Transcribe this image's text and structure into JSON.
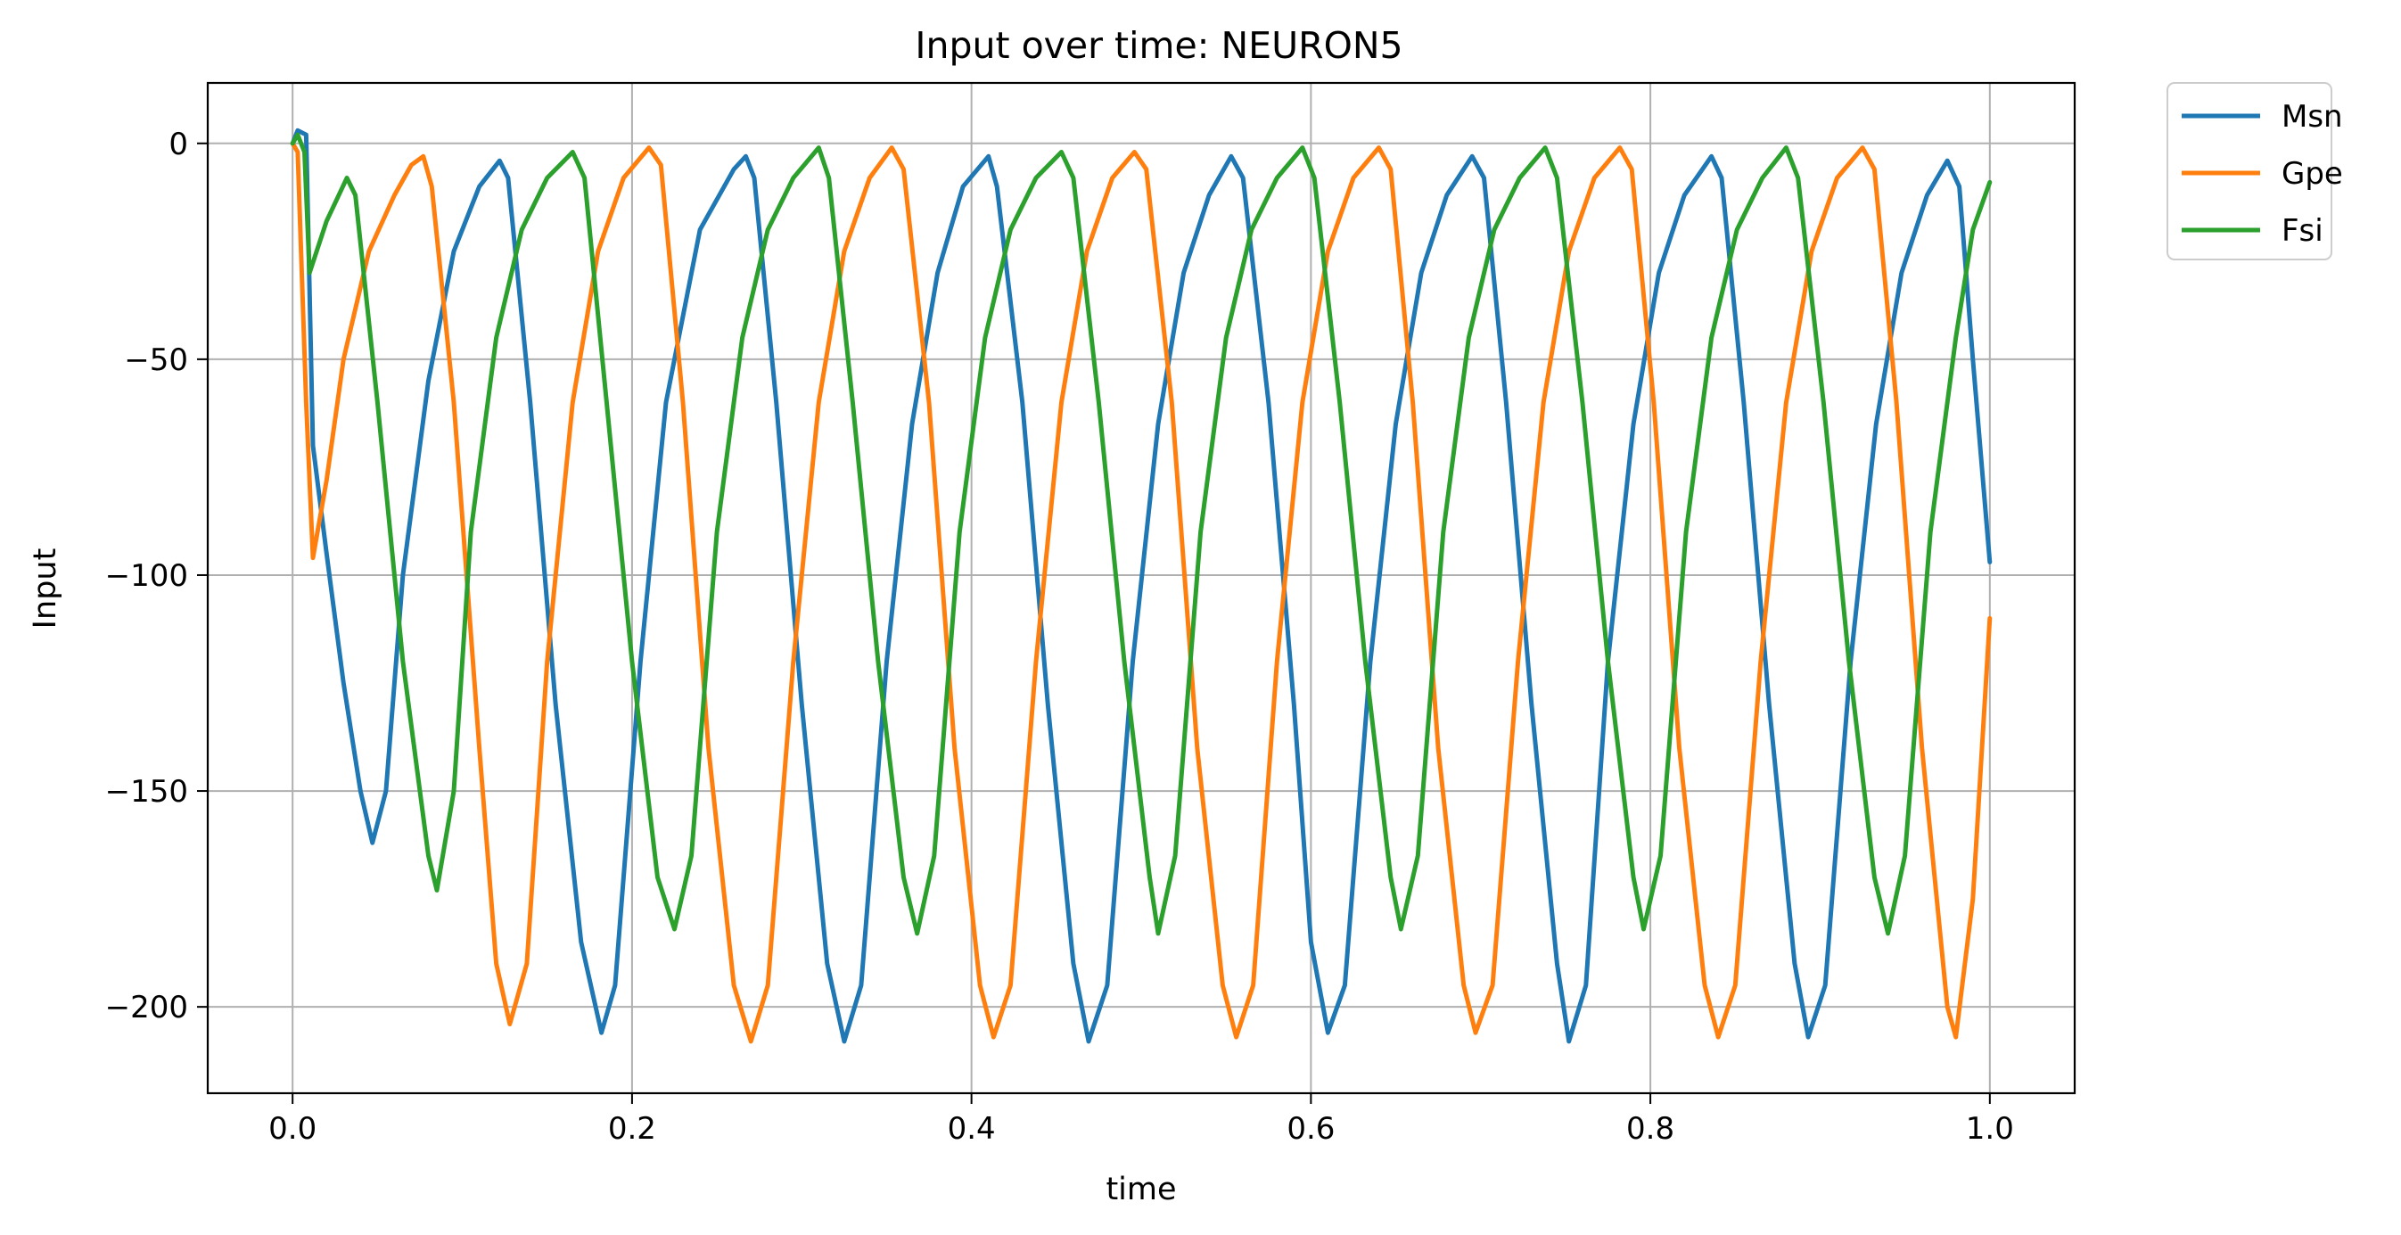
{
  "chart_data": {
    "type": "line",
    "title": "Input over time: NEURON5",
    "xlabel": "time",
    "ylabel": "Input",
    "xlim": [
      -0.05,
      1.05
    ],
    "ylim": [
      -220,
      14
    ],
    "xticks": [
      0.0,
      0.2,
      0.4,
      0.6,
      0.8,
      1.0
    ],
    "xtick_labels": [
      "0.0",
      "0.2",
      "0.4",
      "0.6",
      "0.8",
      "1.0"
    ],
    "yticks": [
      0,
      -50,
      -100,
      -150,
      -200
    ],
    "ytick_labels": [
      "0",
      "−50",
      "−100",
      "−150",
      "−200"
    ],
    "grid": true,
    "legend_position": "outside-top-right",
    "series": [
      {
        "name": "Msn",
        "color": "#1f77b4",
        "points": [
          [
            0.0,
            0
          ],
          [
            0.003,
            3
          ],
          [
            0.008,
            2
          ],
          [
            0.012,
            -70
          ],
          [
            0.02,
            -95
          ],
          [
            0.03,
            -125
          ],
          [
            0.04,
            -150
          ],
          [
            0.047,
            -162
          ],
          [
            0.055,
            -150
          ],
          [
            0.065,
            -100
          ],
          [
            0.08,
            -55
          ],
          [
            0.095,
            -25
          ],
          [
            0.11,
            -10
          ],
          [
            0.122,
            -4
          ],
          [
            0.127,
            -8
          ],
          [
            0.14,
            -60
          ],
          [
            0.155,
            -130
          ],
          [
            0.17,
            -185
          ],
          [
            0.182,
            -206
          ],
          [
            0.19,
            -195
          ],
          [
            0.205,
            -120
          ],
          [
            0.22,
            -60
          ],
          [
            0.24,
            -20
          ],
          [
            0.26,
            -6
          ],
          [
            0.267,
            -3
          ],
          [
            0.272,
            -8
          ],
          [
            0.285,
            -60
          ],
          [
            0.3,
            -130
          ],
          [
            0.315,
            -190
          ],
          [
            0.325,
            -208
          ],
          [
            0.335,
            -195
          ],
          [
            0.35,
            -120
          ],
          [
            0.365,
            -65
          ],
          [
            0.38,
            -30
          ],
          [
            0.395,
            -10
          ],
          [
            0.41,
            -3
          ],
          [
            0.415,
            -10
          ],
          [
            0.43,
            -60
          ],
          [
            0.445,
            -130
          ],
          [
            0.46,
            -190
          ],
          [
            0.469,
            -208
          ],
          [
            0.48,
            -195
          ],
          [
            0.495,
            -120
          ],
          [
            0.51,
            -65
          ],
          [
            0.525,
            -30
          ],
          [
            0.54,
            -12
          ],
          [
            0.553,
            -3
          ],
          [
            0.56,
            -8
          ],
          [
            0.575,
            -60
          ],
          [
            0.59,
            -130
          ],
          [
            0.6,
            -185
          ],
          [
            0.61,
            -206
          ],
          [
            0.62,
            -195
          ],
          [
            0.635,
            -120
          ],
          [
            0.65,
            -65
          ],
          [
            0.665,
            -30
          ],
          [
            0.68,
            -12
          ],
          [
            0.695,
            -3
          ],
          [
            0.702,
            -8
          ],
          [
            0.715,
            -60
          ],
          [
            0.73,
            -130
          ],
          [
            0.745,
            -190
          ],
          [
            0.752,
            -208
          ],
          [
            0.762,
            -195
          ],
          [
            0.775,
            -120
          ],
          [
            0.79,
            -65
          ],
          [
            0.805,
            -30
          ],
          [
            0.82,
            -12
          ],
          [
            0.836,
            -3
          ],
          [
            0.842,
            -8
          ],
          [
            0.855,
            -60
          ],
          [
            0.87,
            -130
          ],
          [
            0.885,
            -190
          ],
          [
            0.893,
            -207
          ],
          [
            0.903,
            -195
          ],
          [
            0.918,
            -120
          ],
          [
            0.933,
            -65
          ],
          [
            0.948,
            -30
          ],
          [
            0.963,
            -12
          ],
          [
            0.975,
            -4
          ],
          [
            0.982,
            -10
          ],
          [
            0.99,
            -50
          ],
          [
            1.0,
            -97
          ]
        ]
      },
      {
        "name": "Gpe",
        "color": "#ff7f0e",
        "points": [
          [
            0.0,
            0
          ],
          [
            0.003,
            -2
          ],
          [
            0.008,
            -60
          ],
          [
            0.012,
            -96
          ],
          [
            0.02,
            -78
          ],
          [
            0.03,
            -50
          ],
          [
            0.045,
            -25
          ],
          [
            0.06,
            -12
          ],
          [
            0.07,
            -5
          ],
          [
            0.077,
            -3
          ],
          [
            0.082,
            -10
          ],
          [
            0.095,
            -60
          ],
          [
            0.11,
            -140
          ],
          [
            0.12,
            -190
          ],
          [
            0.128,
            -204
          ],
          [
            0.138,
            -190
          ],
          [
            0.15,
            -120
          ],
          [
            0.165,
            -60
          ],
          [
            0.18,
            -25
          ],
          [
            0.195,
            -8
          ],
          [
            0.21,
            -1
          ],
          [
            0.217,
            -5
          ],
          [
            0.23,
            -60
          ],
          [
            0.245,
            -140
          ],
          [
            0.26,
            -195
          ],
          [
            0.27,
            -208
          ],
          [
            0.28,
            -195
          ],
          [
            0.295,
            -120
          ],
          [
            0.31,
            -60
          ],
          [
            0.325,
            -25
          ],
          [
            0.34,
            -8
          ],
          [
            0.353,
            -1
          ],
          [
            0.36,
            -6
          ],
          [
            0.375,
            -60
          ],
          [
            0.39,
            -140
          ],
          [
            0.405,
            -195
          ],
          [
            0.413,
            -207
          ],
          [
            0.423,
            -195
          ],
          [
            0.438,
            -120
          ],
          [
            0.453,
            -60
          ],
          [
            0.468,
            -25
          ],
          [
            0.483,
            -8
          ],
          [
            0.496,
            -2
          ],
          [
            0.503,
            -6
          ],
          [
            0.518,
            -60
          ],
          [
            0.533,
            -140
          ],
          [
            0.548,
            -195
          ],
          [
            0.556,
            -207
          ],
          [
            0.566,
            -195
          ],
          [
            0.58,
            -120
          ],
          [
            0.595,
            -60
          ],
          [
            0.61,
            -25
          ],
          [
            0.625,
            -8
          ],
          [
            0.64,
            -1
          ],
          [
            0.647,
            -6
          ],
          [
            0.66,
            -60
          ],
          [
            0.675,
            -140
          ],
          [
            0.69,
            -195
          ],
          [
            0.697,
            -206
          ],
          [
            0.707,
            -195
          ],
          [
            0.722,
            -120
          ],
          [
            0.737,
            -60
          ],
          [
            0.752,
            -25
          ],
          [
            0.767,
            -8
          ],
          [
            0.782,
            -1
          ],
          [
            0.789,
            -6
          ],
          [
            0.802,
            -60
          ],
          [
            0.817,
            -140
          ],
          [
            0.832,
            -195
          ],
          [
            0.84,
            -207
          ],
          [
            0.85,
            -195
          ],
          [
            0.865,
            -120
          ],
          [
            0.88,
            -60
          ],
          [
            0.895,
            -25
          ],
          [
            0.91,
            -8
          ],
          [
            0.925,
            -1
          ],
          [
            0.932,
            -6
          ],
          [
            0.945,
            -60
          ],
          [
            0.96,
            -140
          ],
          [
            0.975,
            -200
          ],
          [
            0.98,
            -207
          ],
          [
            0.99,
            -175
          ],
          [
            1.0,
            -110
          ]
        ]
      },
      {
        "name": "Fsi",
        "color": "#2ca02c",
        "points": [
          [
            0.0,
            0
          ],
          [
            0.003,
            2
          ],
          [
            0.007,
            -2
          ],
          [
            0.01,
            -30
          ],
          [
            0.02,
            -18
          ],
          [
            0.032,
            -8
          ],
          [
            0.037,
            -12
          ],
          [
            0.05,
            -60
          ],
          [
            0.065,
            -120
          ],
          [
            0.08,
            -165
          ],
          [
            0.085,
            -173
          ],
          [
            0.095,
            -150
          ],
          [
            0.105,
            -90
          ],
          [
            0.12,
            -45
          ],
          [
            0.135,
            -20
          ],
          [
            0.15,
            -8
          ],
          [
            0.165,
            -2
          ],
          [
            0.172,
            -8
          ],
          [
            0.185,
            -60
          ],
          [
            0.2,
            -120
          ],
          [
            0.215,
            -170
          ],
          [
            0.225,
            -182
          ],
          [
            0.235,
            -165
          ],
          [
            0.25,
            -90
          ],
          [
            0.265,
            -45
          ],
          [
            0.28,
            -20
          ],
          [
            0.295,
            -8
          ],
          [
            0.31,
            -1
          ],
          [
            0.316,
            -8
          ],
          [
            0.33,
            -60
          ],
          [
            0.345,
            -120
          ],
          [
            0.36,
            -170
          ],
          [
            0.368,
            -183
          ],
          [
            0.378,
            -165
          ],
          [
            0.393,
            -90
          ],
          [
            0.408,
            -45
          ],
          [
            0.423,
            -20
          ],
          [
            0.438,
            -8
          ],
          [
            0.453,
            -2
          ],
          [
            0.46,
            -8
          ],
          [
            0.475,
            -60
          ],
          [
            0.49,
            -120
          ],
          [
            0.505,
            -170
          ],
          [
            0.51,
            -183
          ],
          [
            0.52,
            -165
          ],
          [
            0.535,
            -90
          ],
          [
            0.55,
            -45
          ],
          [
            0.565,
            -20
          ],
          [
            0.58,
            -8
          ],
          [
            0.595,
            -1
          ],
          [
            0.602,
            -8
          ],
          [
            0.617,
            -60
          ],
          [
            0.632,
            -120
          ],
          [
            0.647,
            -170
          ],
          [
            0.653,
            -182
          ],
          [
            0.663,
            -165
          ],
          [
            0.678,
            -90
          ],
          [
            0.693,
            -45
          ],
          [
            0.708,
            -20
          ],
          [
            0.723,
            -8
          ],
          [
            0.738,
            -1
          ],
          [
            0.745,
            -8
          ],
          [
            0.76,
            -60
          ],
          [
            0.775,
            -120
          ],
          [
            0.79,
            -170
          ],
          [
            0.796,
            -182
          ],
          [
            0.806,
            -165
          ],
          [
            0.821,
            -90
          ],
          [
            0.836,
            -45
          ],
          [
            0.851,
            -20
          ],
          [
            0.866,
            -8
          ],
          [
            0.88,
            -1
          ],
          [
            0.887,
            -8
          ],
          [
            0.902,
            -60
          ],
          [
            0.917,
            -120
          ],
          [
            0.932,
            -170
          ],
          [
            0.94,
            -183
          ],
          [
            0.95,
            -165
          ],
          [
            0.965,
            -90
          ],
          [
            0.98,
            -45
          ],
          [
            0.99,
            -20
          ],
          [
            1.0,
            -9
          ]
        ]
      }
    ]
  }
}
